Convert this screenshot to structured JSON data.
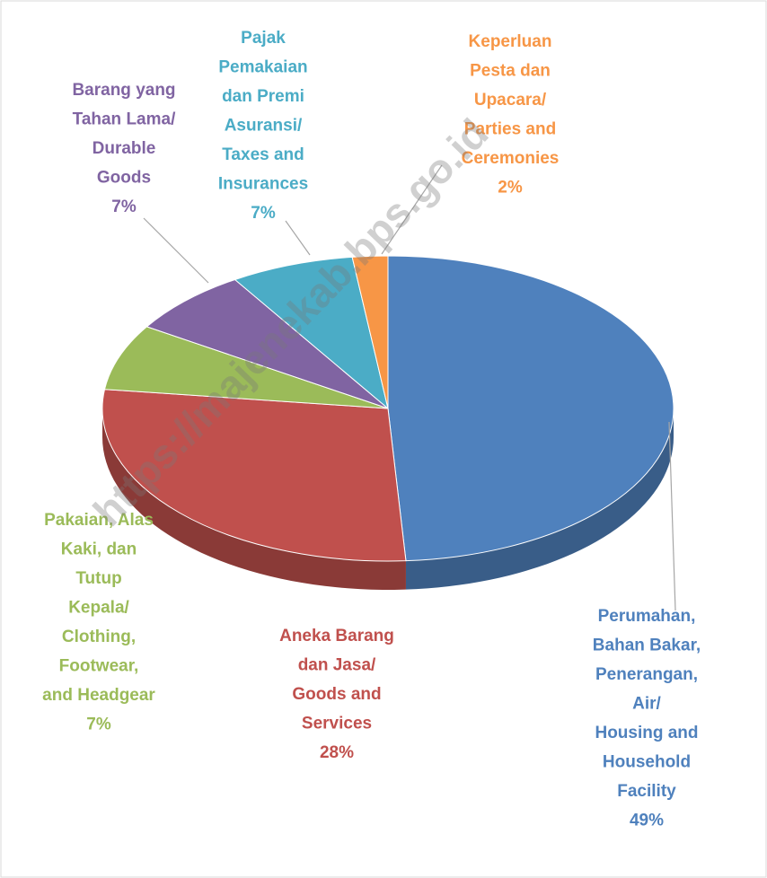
{
  "chart_data": {
    "type": "pie",
    "categories": [
      "Perumahan,\nBahan Bakar,\nPenerangan,\nAir/\nHousing and\nHousehold\nFacility",
      "Aneka Barang\ndan Jasa/\nGoods and\nServices",
      "Pakaian, Alas\nKaki, dan\nTutup\nKepala/\nClothing,\nFootwear,\nand Headgear",
      "Barang yang\nTahan Lama/\nDurable\nGoods",
      "Pajak\nPemakaian\ndan Premi\nAsuransi/\nTaxes and\nInsurances",
      "Keperluan\nPesta dan\nUpacara/\nParties and\nCeremonies"
    ],
    "values": [
      49,
      28,
      7,
      7,
      7,
      2
    ],
    "value_labels": [
      "49%",
      "28%",
      "7%",
      "7%",
      "7%",
      "2%"
    ],
    "colors": [
      "#4f81bd",
      "#c0504d",
      "#9bbb59",
      "#8064a2",
      "#4bacc6",
      "#f79646"
    ],
    "watermark": "https://majenekab.bps.go.id"
  }
}
